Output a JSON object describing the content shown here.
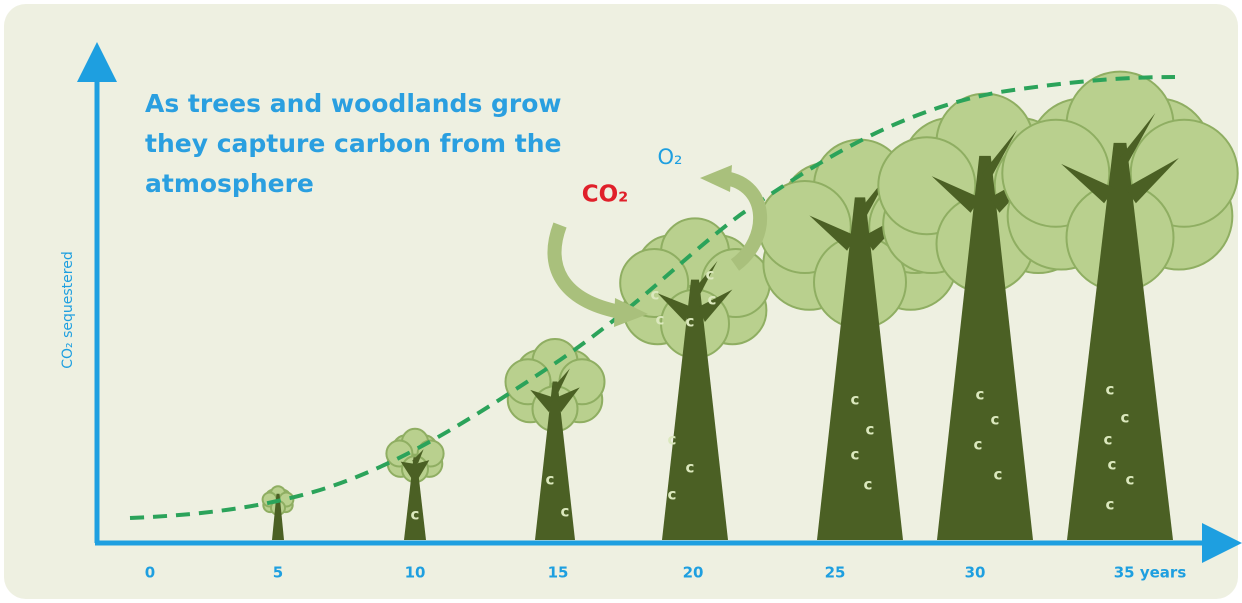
{
  "header": {
    "title_lines": [
      "As trees and woodlands grow",
      "they capture carbon from the",
      "atmosphere"
    ]
  },
  "y_axis": {
    "label": "CO₂ sequestered"
  },
  "x_axis": {
    "ticks": [
      "0",
      "5",
      "10",
      "15",
      "20",
      "25",
      "30",
      "35 years"
    ]
  },
  "labels": {
    "co2": "CO₂",
    "o2": "O₂",
    "carbon_symbol": "c"
  }
}
